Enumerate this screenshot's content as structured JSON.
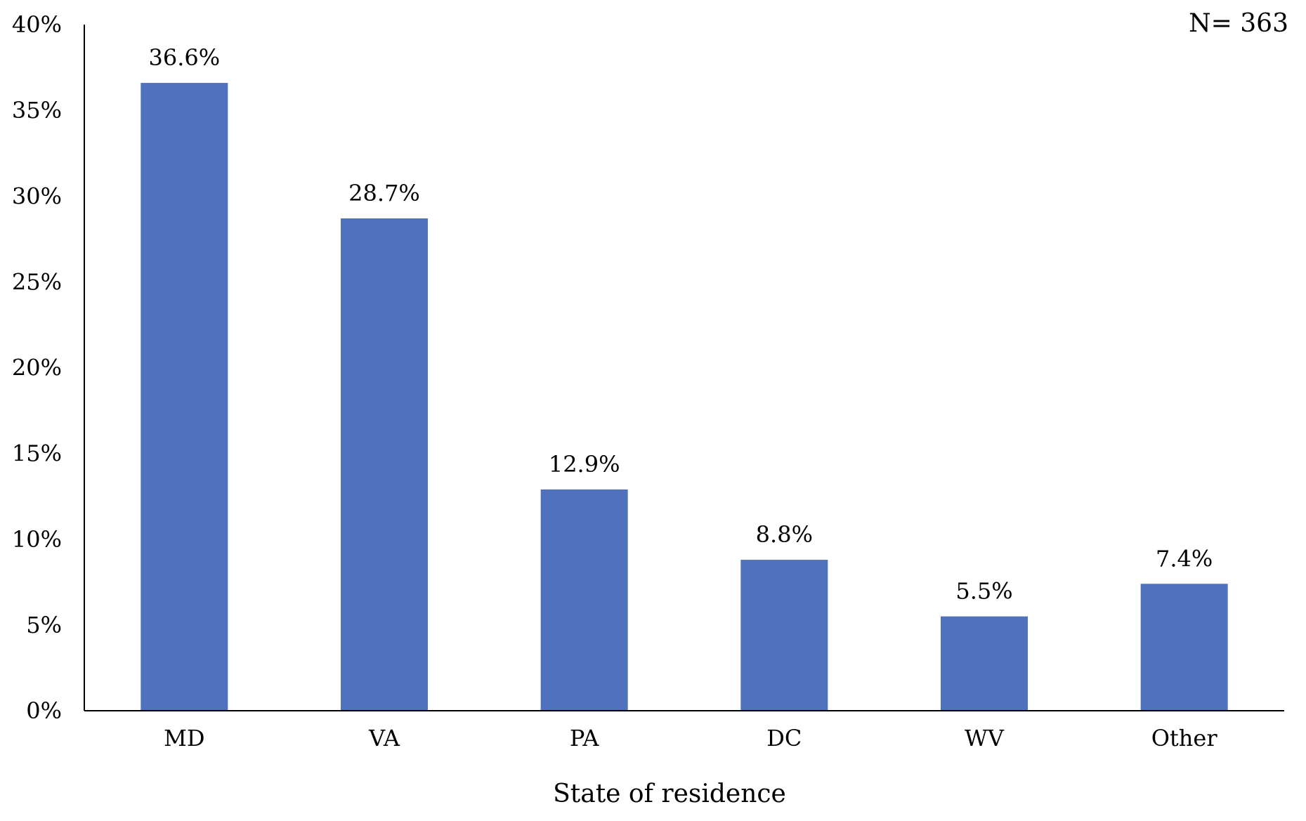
{
  "chart_data": {
    "type": "bar",
    "categories": [
      "MD",
      "VA",
      "PA",
      "DC",
      "WV",
      "Other"
    ],
    "values": [
      36.6,
      28.7,
      12.9,
      8.8,
      5.5,
      7.4
    ],
    "value_labels": [
      "36.6%",
      "28.7%",
      "12.9%",
      "8.8%",
      "5.5%",
      "7.4%"
    ],
    "title": "",
    "xlabel": "State of residence",
    "ylabel": "",
    "ylim": [
      0,
      40
    ],
    "yticks": [
      0,
      5,
      10,
      15,
      20,
      25,
      30,
      35,
      40
    ],
    "ytick_labels": [
      "0%",
      "5%",
      "10%",
      "15%",
      "20%",
      "25%",
      "30%",
      "35%",
      "40%"
    ],
    "annotation": "N= 363",
    "grid": false,
    "legend": "none",
    "bar_color": "#5072BE",
    "axis_color": "#000000"
  }
}
